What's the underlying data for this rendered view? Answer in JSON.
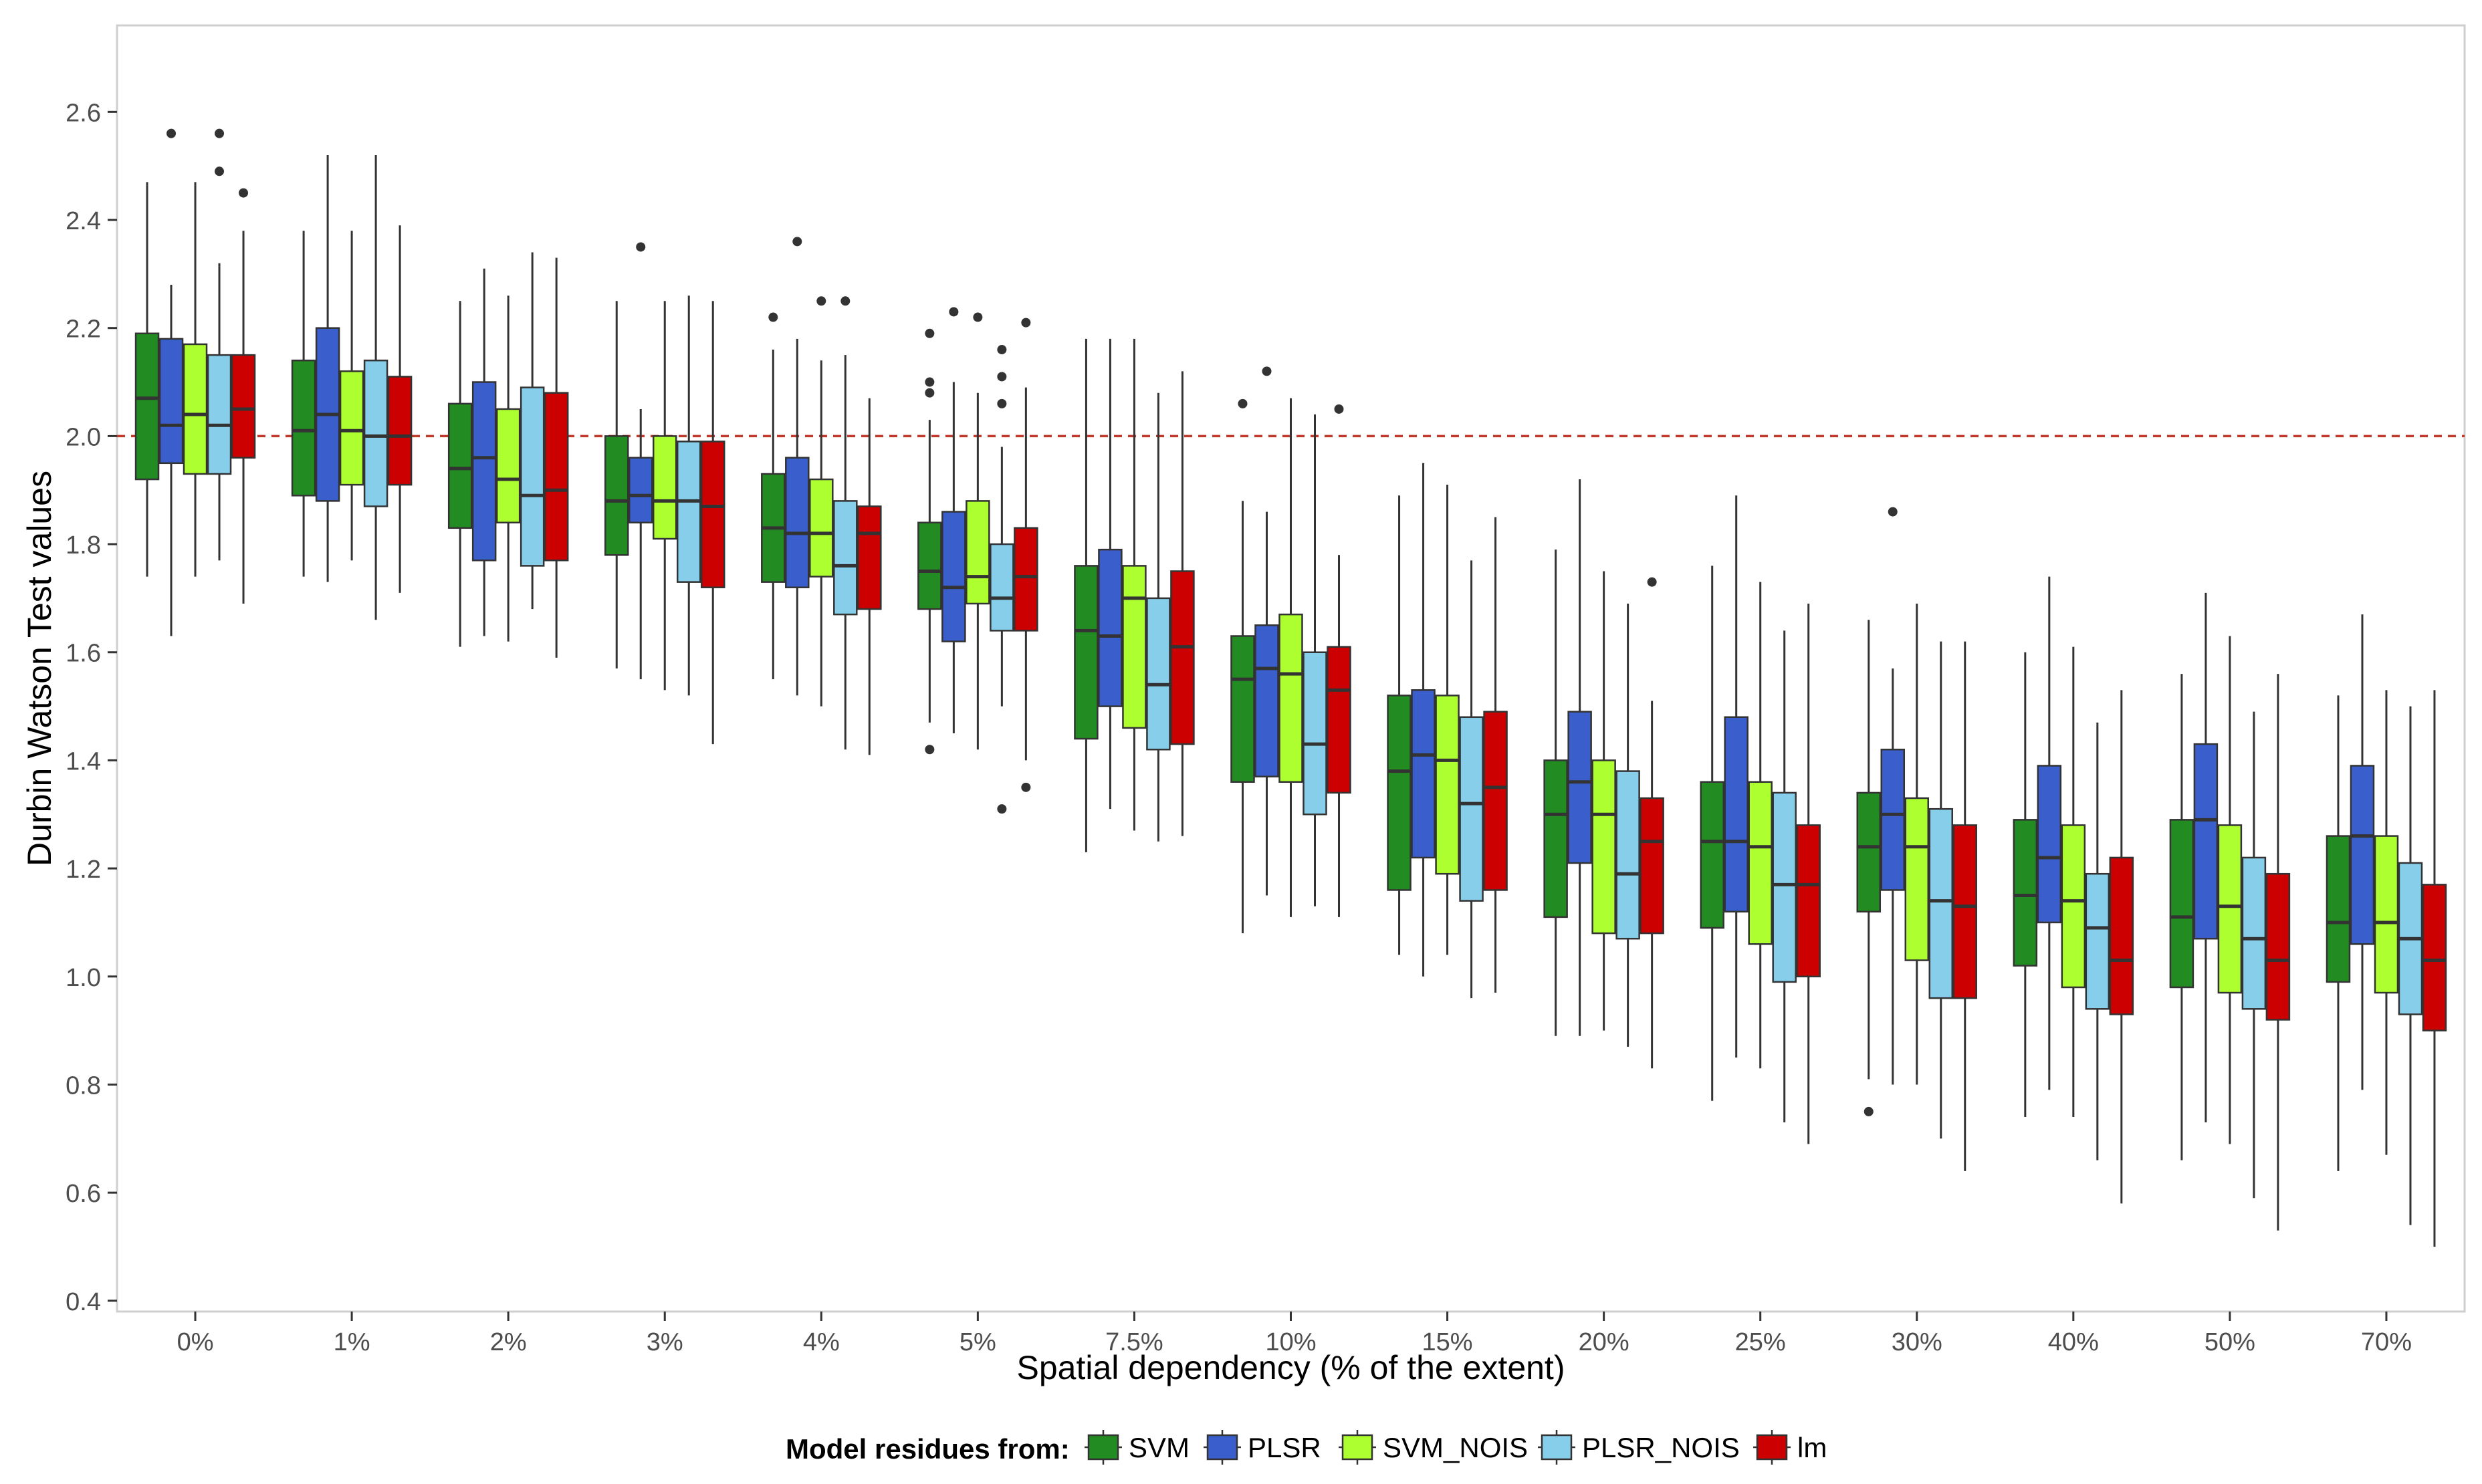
{
  "chart_data": {
    "type": "boxplot",
    "xlabel": "Spatial dependency (% of the extent)",
    "ylabel": "Durbin Watson Test values",
    "ylim": [
      0.38,
      2.76
    ],
    "yticks": [
      0.4,
      0.6,
      0.8,
      1.0,
      1.2,
      1.4,
      1.6,
      1.8,
      2.0,
      2.2,
      2.4,
      2.6
    ],
    "ytick_labels": [
      "0.4",
      "0.6",
      "0.8",
      "1.0",
      "1.2",
      "1.4",
      "1.6",
      "1.8",
      "2.0",
      "2.2",
      "2.4",
      "2.6"
    ],
    "reference_line": {
      "value": 2.0,
      "style": "dashed",
      "color": "#c0392b"
    },
    "categories": [
      "0%",
      "1%",
      "2%",
      "3%",
      "4%",
      "5%",
      "7.5%",
      "10%",
      "15%",
      "20%",
      "25%",
      "30%",
      "40%",
      "50%",
      "70%"
    ],
    "legend": {
      "title": "Model residues from:",
      "position": "bottom"
    },
    "series": [
      {
        "name": "SVM",
        "color": "#228b22",
        "boxes": [
          {
            "low": 1.74,
            "q1": 1.92,
            "median": 2.07,
            "q3": 2.19,
            "high": 2.47,
            "outliers": []
          },
          {
            "low": 1.74,
            "q1": 1.89,
            "median": 2.01,
            "q3": 2.14,
            "high": 2.38,
            "outliers": []
          },
          {
            "low": 1.61,
            "q1": 1.83,
            "median": 1.94,
            "q3": 2.06,
            "high": 2.25,
            "outliers": []
          },
          {
            "low": 1.57,
            "q1": 1.78,
            "median": 1.88,
            "q3": 2.0,
            "high": 2.25,
            "outliers": []
          },
          {
            "low": 1.55,
            "q1": 1.73,
            "median": 1.83,
            "q3": 1.93,
            "high": 2.16,
            "outliers": [
              2.22
            ]
          },
          {
            "low": 1.47,
            "q1": 1.68,
            "median": 1.75,
            "q3": 1.84,
            "high": 2.03,
            "outliers": [
              2.19,
              2.1,
              2.08,
              1.42
            ]
          },
          {
            "low": 1.23,
            "q1": 1.44,
            "median": 1.64,
            "q3": 1.76,
            "high": 2.18,
            "outliers": []
          },
          {
            "low": 1.08,
            "q1": 1.36,
            "median": 1.55,
            "q3": 1.63,
            "high": 1.88,
            "outliers": [
              2.06
            ]
          },
          {
            "low": 1.04,
            "q1": 1.16,
            "median": 1.38,
            "q3": 1.52,
            "high": 1.89,
            "outliers": []
          },
          {
            "low": 0.89,
            "q1": 1.11,
            "median": 1.3,
            "q3": 1.4,
            "high": 1.79,
            "outliers": []
          },
          {
            "low": 0.77,
            "q1": 1.09,
            "median": 1.25,
            "q3": 1.36,
            "high": 1.76,
            "outliers": []
          },
          {
            "low": 0.81,
            "q1": 1.12,
            "median": 1.24,
            "q3": 1.34,
            "high": 1.66,
            "outliers": [
              0.75
            ]
          },
          {
            "low": 0.74,
            "q1": 1.02,
            "median": 1.15,
            "q3": 1.29,
            "high": 1.6,
            "outliers": []
          },
          {
            "low": 0.66,
            "q1": 0.98,
            "median": 1.11,
            "q3": 1.29,
            "high": 1.56,
            "outliers": []
          },
          {
            "low": 0.64,
            "q1": 0.99,
            "median": 1.1,
            "q3": 1.26,
            "high": 1.52,
            "outliers": []
          }
        ]
      },
      {
        "name": "PLSR",
        "color": "#3a5fcd",
        "boxes": [
          {
            "low": 1.63,
            "q1": 1.95,
            "median": 2.02,
            "q3": 2.18,
            "high": 2.28,
            "outliers": [
              2.56
            ]
          },
          {
            "low": 1.73,
            "q1": 1.88,
            "median": 2.04,
            "q3": 2.2,
            "high": 2.52,
            "outliers": []
          },
          {
            "low": 1.63,
            "q1": 1.77,
            "median": 1.96,
            "q3": 2.1,
            "high": 2.31,
            "outliers": []
          },
          {
            "low": 1.55,
            "q1": 1.84,
            "median": 1.89,
            "q3": 1.96,
            "high": 2.05,
            "outliers": [
              2.35
            ]
          },
          {
            "low": 1.52,
            "q1": 1.72,
            "median": 1.82,
            "q3": 1.96,
            "high": 2.18,
            "outliers": [
              2.36
            ]
          },
          {
            "low": 1.45,
            "q1": 1.62,
            "median": 1.72,
            "q3": 1.86,
            "high": 2.1,
            "outliers": [
              2.23
            ]
          },
          {
            "low": 1.31,
            "q1": 1.5,
            "median": 1.63,
            "q3": 1.79,
            "high": 2.18,
            "outliers": []
          },
          {
            "low": 1.15,
            "q1": 1.37,
            "median": 1.57,
            "q3": 1.65,
            "high": 1.86,
            "outliers": [
              2.12
            ]
          },
          {
            "low": 1.0,
            "q1": 1.22,
            "median": 1.41,
            "q3": 1.53,
            "high": 1.95,
            "outliers": []
          },
          {
            "low": 0.89,
            "q1": 1.21,
            "median": 1.36,
            "q3": 1.49,
            "high": 1.92,
            "outliers": []
          },
          {
            "low": 0.85,
            "q1": 1.12,
            "median": 1.25,
            "q3": 1.48,
            "high": 1.89,
            "outliers": []
          },
          {
            "low": 0.8,
            "q1": 1.16,
            "median": 1.3,
            "q3": 1.42,
            "high": 1.57,
            "outliers": [
              1.86
            ]
          },
          {
            "low": 0.79,
            "q1": 1.1,
            "median": 1.22,
            "q3": 1.39,
            "high": 1.74,
            "outliers": []
          },
          {
            "low": 0.73,
            "q1": 1.07,
            "median": 1.29,
            "q3": 1.43,
            "high": 1.71,
            "outliers": []
          },
          {
            "low": 0.79,
            "q1": 1.06,
            "median": 1.26,
            "q3": 1.39,
            "high": 1.67,
            "outliers": []
          }
        ]
      },
      {
        "name": "SVM_NOIS",
        "color": "#adff2f",
        "boxes": [
          {
            "low": 1.74,
            "q1": 1.93,
            "median": 2.04,
            "q3": 2.17,
            "high": 2.47,
            "outliers": []
          },
          {
            "low": 1.77,
            "q1": 1.91,
            "median": 2.01,
            "q3": 2.12,
            "high": 2.38,
            "outliers": []
          },
          {
            "low": 1.62,
            "q1": 1.84,
            "median": 1.92,
            "q3": 2.05,
            "high": 2.26,
            "outliers": []
          },
          {
            "low": 1.53,
            "q1": 1.81,
            "median": 1.88,
            "q3": 2.0,
            "high": 2.25,
            "outliers": []
          },
          {
            "low": 1.5,
            "q1": 1.74,
            "median": 1.82,
            "q3": 1.92,
            "high": 2.14,
            "outliers": [
              2.25
            ]
          },
          {
            "low": 1.42,
            "q1": 1.69,
            "median": 1.74,
            "q3": 1.88,
            "high": 2.08,
            "outliers": [
              2.22
            ]
          },
          {
            "low": 1.27,
            "q1": 1.46,
            "median": 1.7,
            "q3": 1.76,
            "high": 2.18,
            "outliers": []
          },
          {
            "low": 1.11,
            "q1": 1.36,
            "median": 1.56,
            "q3": 1.67,
            "high": 2.07,
            "outliers": []
          },
          {
            "low": 1.04,
            "q1": 1.19,
            "median": 1.4,
            "q3": 1.52,
            "high": 1.91,
            "outliers": []
          },
          {
            "low": 0.9,
            "q1": 1.08,
            "median": 1.3,
            "q3": 1.4,
            "high": 1.75,
            "outliers": []
          },
          {
            "low": 0.83,
            "q1": 1.06,
            "median": 1.24,
            "q3": 1.36,
            "high": 1.73,
            "outliers": []
          },
          {
            "low": 0.8,
            "q1": 1.03,
            "median": 1.24,
            "q3": 1.33,
            "high": 1.69,
            "outliers": []
          },
          {
            "low": 0.74,
            "q1": 0.98,
            "median": 1.14,
            "q3": 1.28,
            "high": 1.61,
            "outliers": []
          },
          {
            "low": 0.69,
            "q1": 0.97,
            "median": 1.13,
            "q3": 1.28,
            "high": 1.63,
            "outliers": []
          },
          {
            "low": 0.67,
            "q1": 0.97,
            "median": 1.1,
            "q3": 1.26,
            "high": 1.53,
            "outliers": []
          }
        ]
      },
      {
        "name": "PLSR_NOIS",
        "color": "#87ceeb",
        "boxes": [
          {
            "low": 1.77,
            "q1": 1.93,
            "median": 2.02,
            "q3": 2.15,
            "high": 2.32,
            "outliers": [
              2.56,
              2.49
            ]
          },
          {
            "low": 1.66,
            "q1": 1.87,
            "median": 2.0,
            "q3": 2.14,
            "high": 2.52,
            "outliers": []
          },
          {
            "low": 1.68,
            "q1": 1.76,
            "median": 1.89,
            "q3": 2.09,
            "high": 2.34,
            "outliers": []
          },
          {
            "low": 1.52,
            "q1": 1.73,
            "median": 1.88,
            "q3": 1.99,
            "high": 2.26,
            "outliers": []
          },
          {
            "low": 1.42,
            "q1": 1.67,
            "median": 1.76,
            "q3": 1.88,
            "high": 2.15,
            "outliers": [
              2.25
            ]
          },
          {
            "low": 1.5,
            "q1": 1.64,
            "median": 1.7,
            "q3": 1.8,
            "high": 1.98,
            "outliers": [
              2.16,
              2.11,
              2.06,
              1.31
            ]
          },
          {
            "low": 1.25,
            "q1": 1.42,
            "median": 1.54,
            "q3": 1.7,
            "high": 2.08,
            "outliers": []
          },
          {
            "low": 1.13,
            "q1": 1.3,
            "median": 1.43,
            "q3": 1.6,
            "high": 2.04,
            "outliers": []
          },
          {
            "low": 0.96,
            "q1": 1.14,
            "median": 1.32,
            "q3": 1.48,
            "high": 1.77,
            "outliers": []
          },
          {
            "low": 0.87,
            "q1": 1.07,
            "median": 1.19,
            "q3": 1.38,
            "high": 1.69,
            "outliers": []
          },
          {
            "low": 0.73,
            "q1": 0.99,
            "median": 1.17,
            "q3": 1.34,
            "high": 1.64,
            "outliers": []
          },
          {
            "low": 0.7,
            "q1": 0.96,
            "median": 1.14,
            "q3": 1.31,
            "high": 1.62,
            "outliers": []
          },
          {
            "low": 0.66,
            "q1": 0.94,
            "median": 1.09,
            "q3": 1.19,
            "high": 1.47,
            "outliers": []
          },
          {
            "low": 0.59,
            "q1": 0.94,
            "median": 1.07,
            "q3": 1.22,
            "high": 1.49,
            "outliers": []
          },
          {
            "low": 0.54,
            "q1": 0.93,
            "median": 1.07,
            "q3": 1.21,
            "high": 1.5,
            "outliers": []
          }
        ]
      },
      {
        "name": "lm",
        "color": "#cc0000",
        "boxes": [
          {
            "low": 1.69,
            "q1": 1.96,
            "median": 2.05,
            "q3": 2.15,
            "high": 2.38,
            "outliers": [
              2.45
            ]
          },
          {
            "low": 1.71,
            "q1": 1.91,
            "median": 2.0,
            "q3": 2.11,
            "high": 2.39,
            "outliers": []
          },
          {
            "low": 1.59,
            "q1": 1.77,
            "median": 1.9,
            "q3": 2.08,
            "high": 2.33,
            "outliers": []
          },
          {
            "low": 1.43,
            "q1": 1.72,
            "median": 1.87,
            "q3": 1.99,
            "high": 2.25,
            "outliers": []
          },
          {
            "low": 1.41,
            "q1": 1.68,
            "median": 1.82,
            "q3": 1.87,
            "high": 2.07,
            "outliers": []
          },
          {
            "low": 1.4,
            "q1": 1.64,
            "median": 1.74,
            "q3": 1.83,
            "high": 2.09,
            "outliers": [
              2.21,
              1.35
            ]
          },
          {
            "low": 1.26,
            "q1": 1.43,
            "median": 1.61,
            "q3": 1.75,
            "high": 2.12,
            "outliers": []
          },
          {
            "low": 1.11,
            "q1": 1.34,
            "median": 1.53,
            "q3": 1.61,
            "high": 1.78,
            "outliers": [
              2.05
            ]
          },
          {
            "low": 0.97,
            "q1": 1.16,
            "median": 1.35,
            "q3": 1.49,
            "high": 1.85,
            "outliers": []
          },
          {
            "low": 0.83,
            "q1": 1.08,
            "median": 1.25,
            "q3": 1.33,
            "high": 1.51,
            "outliers": [
              1.73
            ]
          },
          {
            "low": 0.69,
            "q1": 1.0,
            "median": 1.17,
            "q3": 1.28,
            "high": 1.69,
            "outliers": []
          },
          {
            "low": 0.64,
            "q1": 0.96,
            "median": 1.13,
            "q3": 1.28,
            "high": 1.62,
            "outliers": []
          },
          {
            "low": 0.58,
            "q1": 0.93,
            "median": 1.03,
            "q3": 1.22,
            "high": 1.53,
            "outliers": []
          },
          {
            "low": 0.53,
            "q1": 0.92,
            "median": 1.03,
            "q3": 1.19,
            "high": 1.56,
            "outliers": []
          },
          {
            "low": 0.5,
            "q1": 0.9,
            "median": 1.03,
            "q3": 1.17,
            "high": 1.53,
            "outliers": []
          }
        ]
      }
    ]
  }
}
